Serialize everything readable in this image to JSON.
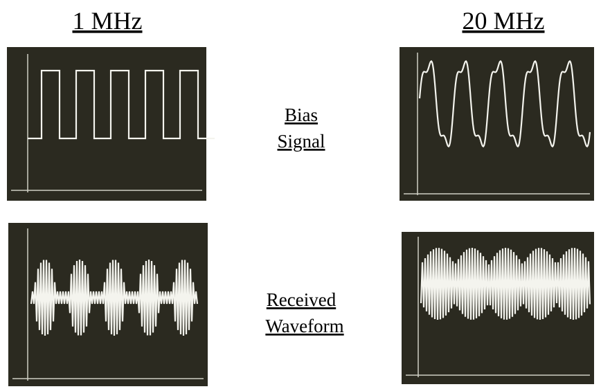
{
  "headers": [
    "1 MHz",
    "20 MHz"
  ],
  "rows": [
    {
      "label": [
        "Bias",
        "Signal"
      ]
    },
    {
      "label": [
        "Received",
        "Waveform"
      ]
    }
  ]
}
